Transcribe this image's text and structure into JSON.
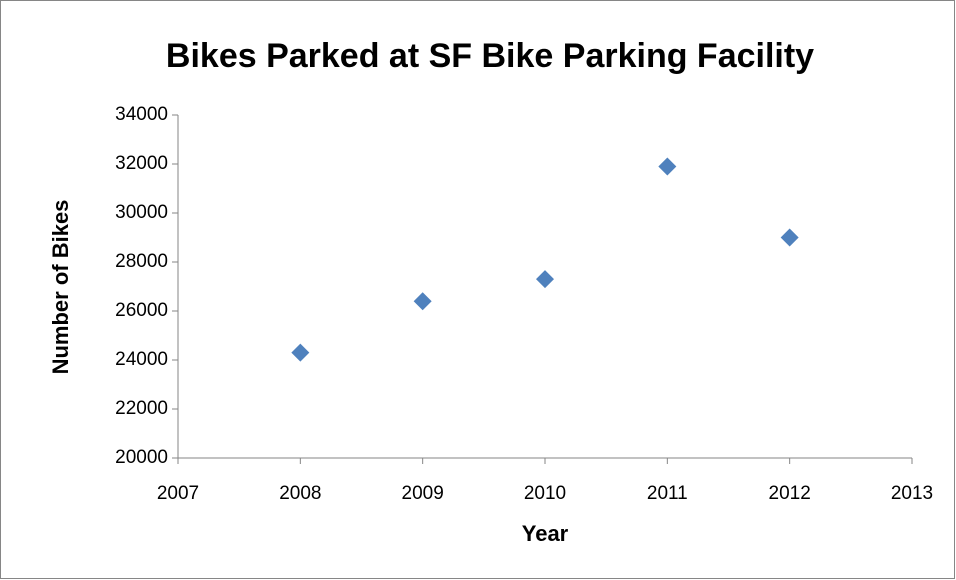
{
  "chart_data": {
    "type": "scatter",
    "title": "Bikes Parked at SF Bike Parking Facility",
    "x_label": "Year",
    "y_label": "Number of Bikes",
    "x": [
      2008,
      2009,
      2010,
      2011,
      2012
    ],
    "values": [
      24300,
      26400,
      27300,
      31900,
      29000
    ],
    "color": "#4f81bd",
    "xlim": [
      2007,
      2013
    ],
    "xticks": [
      2007,
      2008,
      2009,
      2010,
      2011,
      2012,
      2013
    ],
    "ylim": [
      20000,
      34000
    ],
    "yticks": [
      20000,
      22000,
      24000,
      26000,
      28000,
      30000,
      32000,
      34000
    ],
    "grid": false
  }
}
